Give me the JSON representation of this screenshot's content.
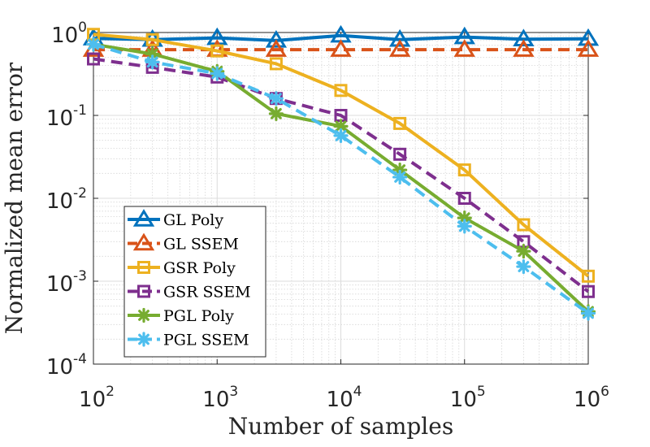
{
  "chart_data": {
    "type": "line",
    "title": "",
    "xlabel": "Number of samples",
    "ylabel": "Normalized mean error",
    "xscale": "log",
    "yscale": "log",
    "xlim": [
      100,
      1000000
    ],
    "ylim": [
      0.0001,
      1
    ],
    "grid": true,
    "legend_position": "bottom-left",
    "x": [
      100,
      300,
      1000,
      3000,
      10000,
      30000,
      100000,
      300000,
      1000000
    ],
    "x_ticks": [
      {
        "value": 100,
        "base": "10",
        "exp": "2"
      },
      {
        "value": 1000,
        "base": "10",
        "exp": "3"
      },
      {
        "value": 10000,
        "base": "10",
        "exp": "4"
      },
      {
        "value": 100000,
        "base": "10",
        "exp": "5"
      },
      {
        "value": 1000000,
        "base": "10",
        "exp": "6"
      }
    ],
    "y_ticks": [
      {
        "value": 1,
        "base": "10",
        "exp": "0"
      },
      {
        "value": 0.1,
        "base": "10",
        "exp": "-1"
      },
      {
        "value": 0.01,
        "base": "10",
        "exp": "-2"
      },
      {
        "value": 0.001,
        "base": "10",
        "exp": "-3"
      },
      {
        "value": 0.0001,
        "base": "10",
        "exp": "-4"
      }
    ],
    "series": [
      {
        "name": "GL Poly",
        "color": "#0072BD",
        "dash": "solid",
        "marker": "triangle",
        "values": [
          0.85,
          0.82,
          0.86,
          0.8,
          0.92,
          0.82,
          0.88,
          0.83,
          0.84
        ]
      },
      {
        "name": "GL SSEM",
        "color": "#D95319",
        "dash": "dashed",
        "marker": "triangle",
        "values": [
          0.62,
          0.62,
          0.62,
          0.62,
          0.62,
          0.62,
          0.62,
          0.62,
          0.62
        ]
      },
      {
        "name": "GSR Poly",
        "color": "#EDB120",
        "dash": "solid",
        "marker": "square",
        "values": [
          0.95,
          0.82,
          0.6,
          0.42,
          0.2,
          0.08,
          0.022,
          0.0048,
          0.00115
        ]
      },
      {
        "name": "GSR SSEM",
        "color": "#7E2F8E",
        "dash": "dashed",
        "marker": "square",
        "values": [
          0.48,
          0.38,
          0.29,
          0.16,
          0.1,
          0.034,
          0.01,
          0.003,
          0.00075
        ]
      },
      {
        "name": "PGL Poly",
        "color": "#77AC30",
        "dash": "solid",
        "marker": "asterisk",
        "values": [
          0.72,
          0.55,
          0.34,
          0.105,
          0.074,
          0.022,
          0.0058,
          0.0023,
          0.00043
        ]
      },
      {
        "name": "PGL SSEM",
        "color": "#4DBEEE",
        "dash": "dashed",
        "marker": "asterisk",
        "values": [
          0.72,
          0.44,
          0.32,
          0.16,
          0.057,
          0.018,
          0.0046,
          0.0015,
          0.00041
        ]
      }
    ]
  }
}
